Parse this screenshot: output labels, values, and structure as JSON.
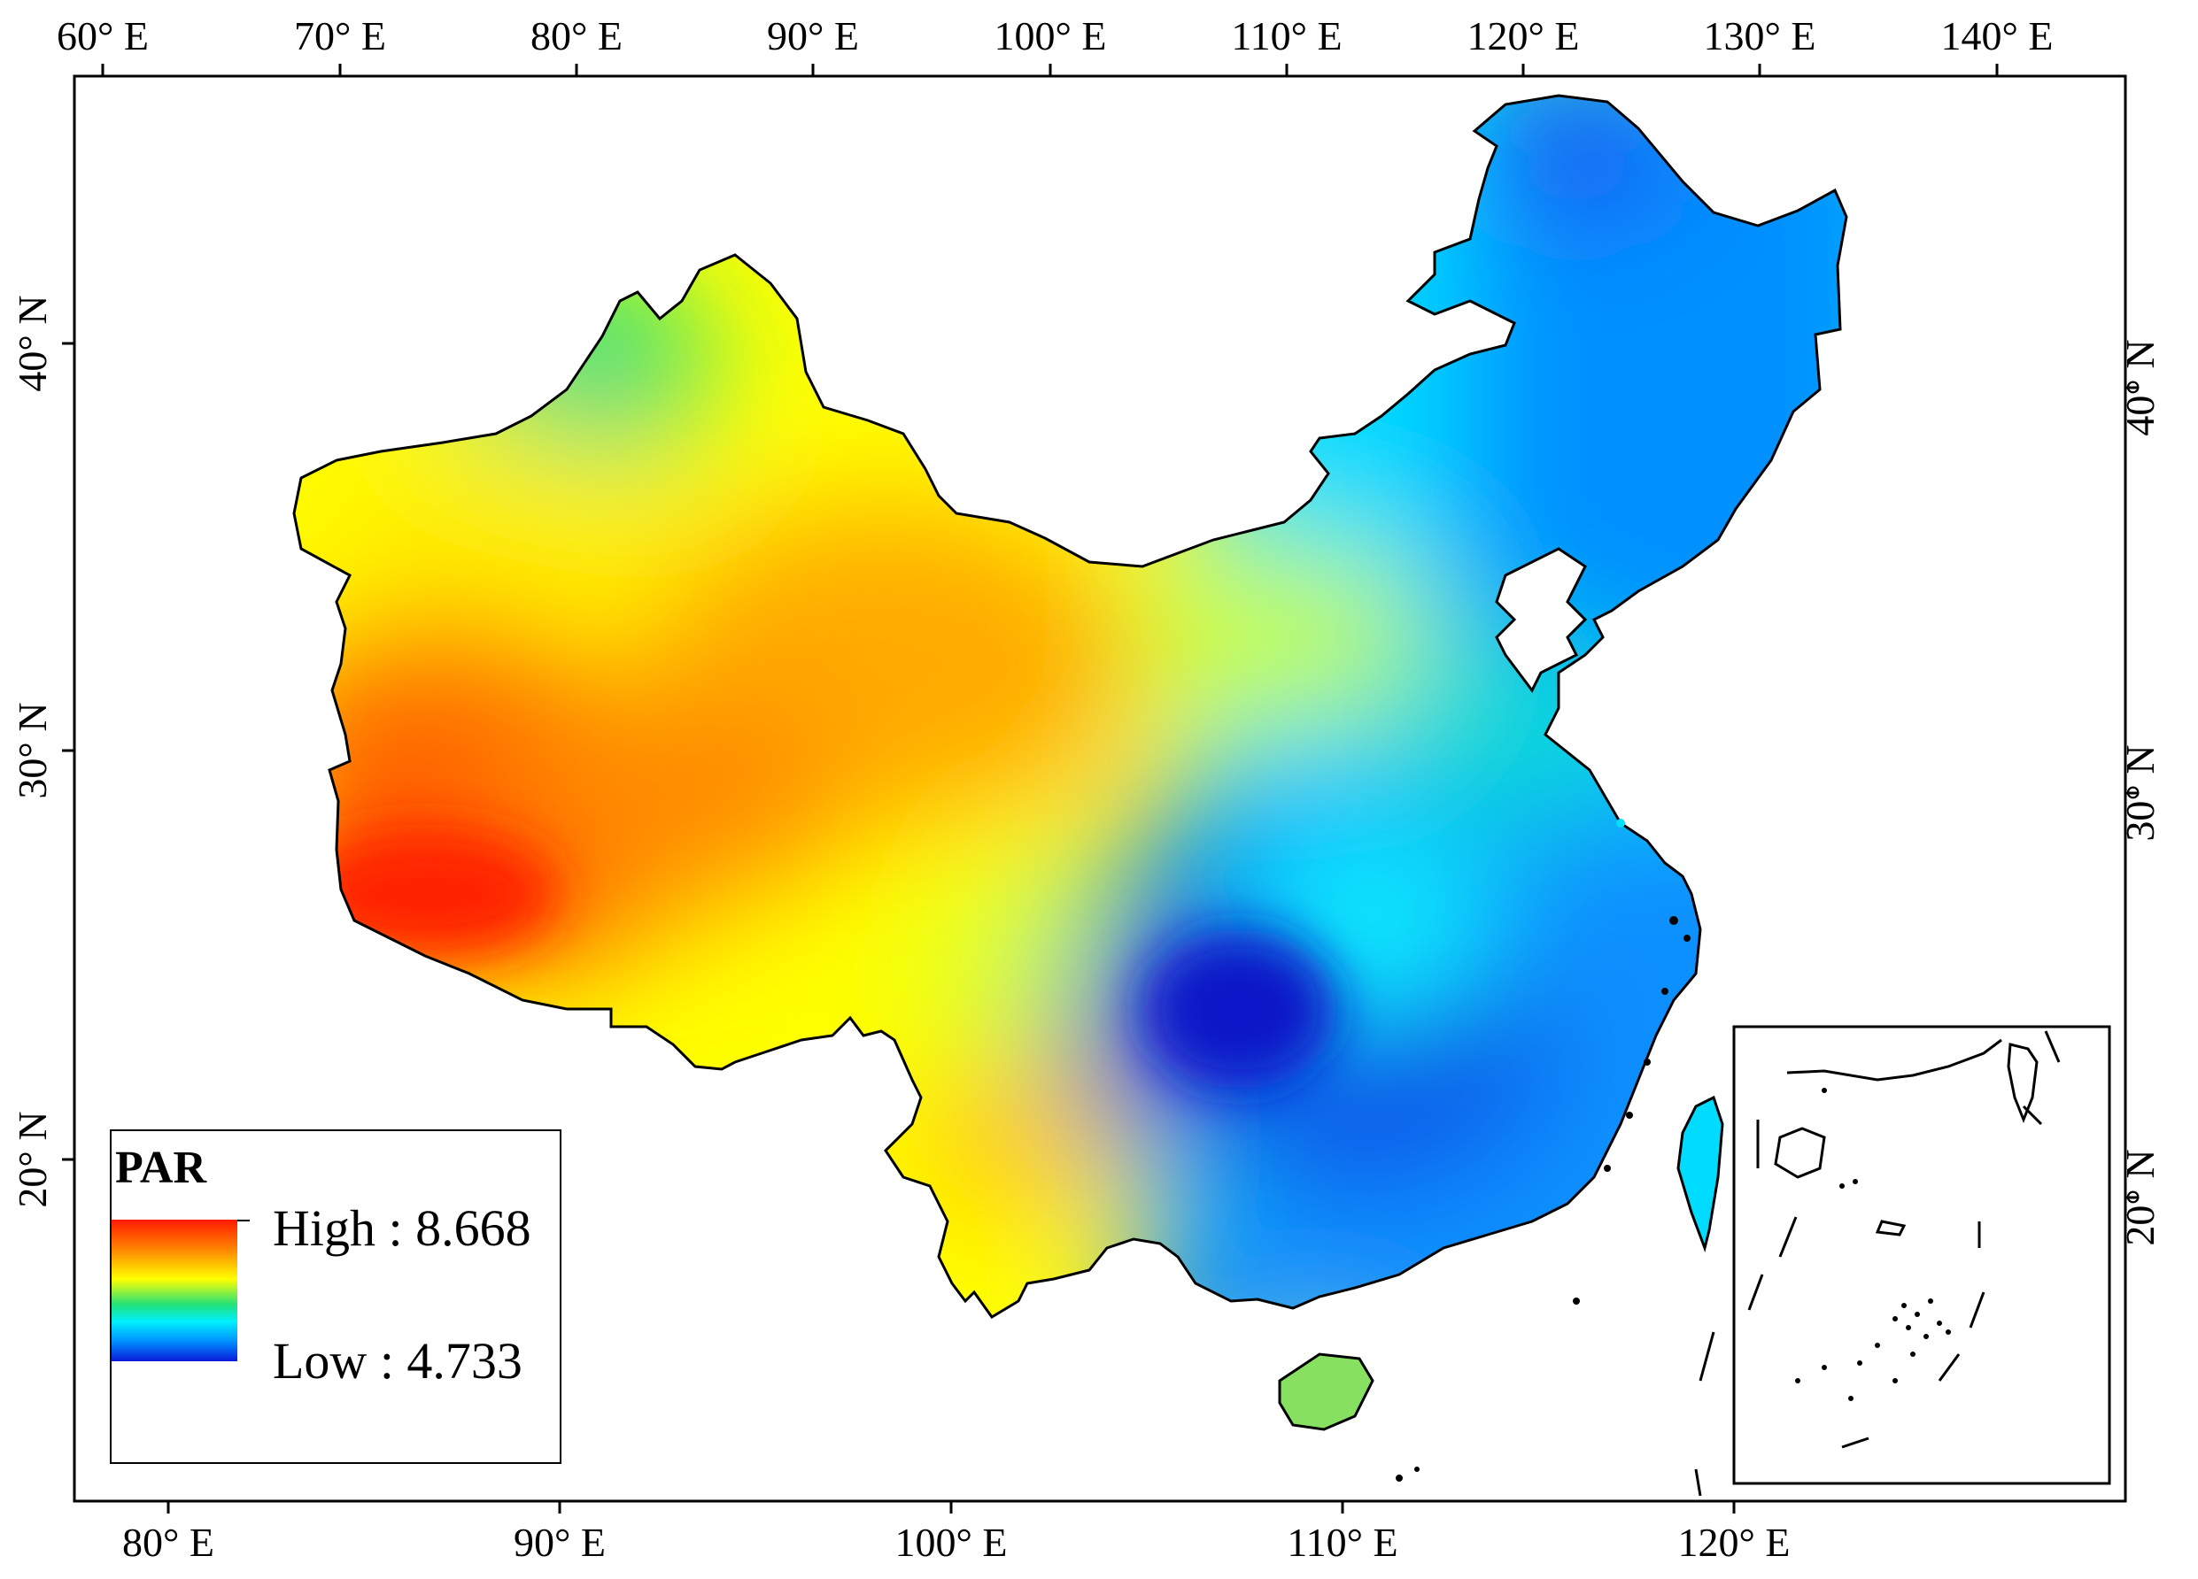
{
  "map": {
    "top_axis_labels": [
      "60° E",
      "70° E",
      "80° E",
      "90° E",
      "100° E",
      "110° E",
      "120° E",
      "130° E",
      "140° E"
    ],
    "bottom_axis_labels": [
      "80° E",
      "90° E",
      "100° E",
      "110° E",
      "120° E"
    ],
    "left_axis_labels": [
      "40° N",
      "30° N",
      "20° N"
    ],
    "right_axis_labels": [
      "40° N",
      "30° N",
      "20° N"
    ]
  },
  "legend": {
    "title": "PAR",
    "high_label": "High : 8.668",
    "low_label": "Low : 4.733",
    "high_color": "#ff1a00",
    "low_color": "#0a1ad8"
  }
}
